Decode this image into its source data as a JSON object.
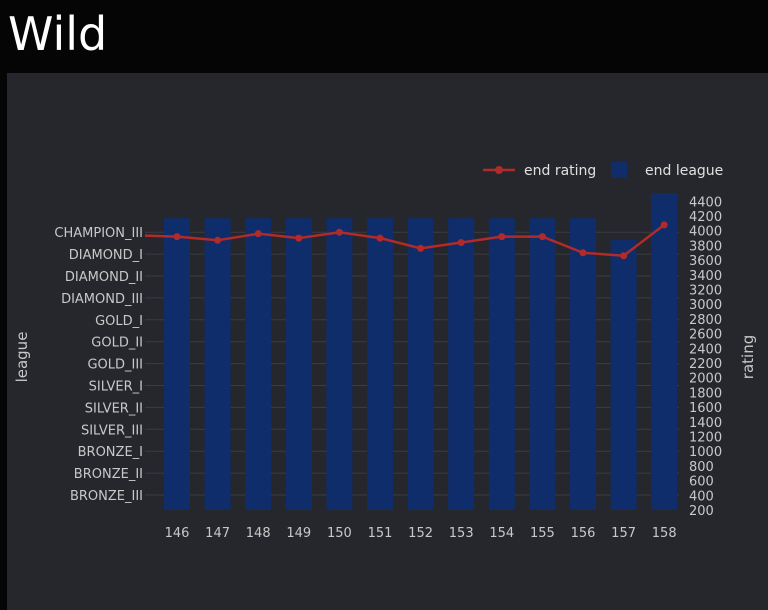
{
  "page": {
    "title": "Wild"
  },
  "colors": {
    "bars": "#0f2d6b",
    "line": "#b22a2a",
    "grid": "#3a3d44",
    "panel": "#25272c"
  },
  "chart_data": {
    "type": "bar+line",
    "title": "",
    "x": [
      "146",
      "147",
      "148",
      "149",
      "150",
      "151",
      "152",
      "153",
      "154",
      "155",
      "156",
      "157",
      "158"
    ],
    "y_left": {
      "label": "league",
      "categories": [
        "BRONZE_III",
        "BRONZE_II",
        "BRONZE_I",
        "SILVER_III",
        "SILVER_II",
        "SILVER_I",
        "GOLD_III",
        "GOLD_II",
        "GOLD_I",
        "DIAMOND_III",
        "DIAMOND_II",
        "DIAMOND_I",
        "CHAMPION_III"
      ]
    },
    "y_right": {
      "label": "rating",
      "ticks": [
        200,
        400,
        600,
        800,
        1000,
        1200,
        1400,
        1600,
        1800,
        2000,
        2200,
        2400,
        2600,
        2800,
        3000,
        3200,
        3400,
        3600,
        3800,
        4000,
        4200,
        4400
      ],
      "range": [
        200,
        4500
      ]
    },
    "series": [
      {
        "name": "end league",
        "kind": "bar",
        "values": [
          "CHAMPION_III",
          "CHAMPION_III",
          "CHAMPION_III",
          "CHAMPION_III",
          "CHAMPION_III",
          "CHAMPION_III",
          "CHAMPION_III",
          "CHAMPION_III",
          "CHAMPION_III",
          "CHAMPION_III",
          "CHAMPION_III",
          "DIAMOND_I",
          "LEGEND"
        ]
      },
      {
        "name": "end rating",
        "kind": "line",
        "values": [
          3920,
          3870,
          3960,
          3900,
          3980,
          3900,
          3760,
          3840,
          3920,
          3920,
          3700,
          3660,
          4080
        ]
      }
    ],
    "legend": "top-right",
    "grid": true
  }
}
